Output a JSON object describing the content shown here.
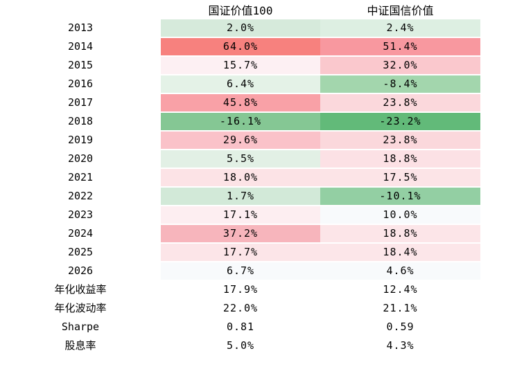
{
  "table": {
    "columns": [
      "国证价值100",
      "中证国信价值"
    ],
    "rows": [
      {
        "label": "2013",
        "v1": "2.0%",
        "c1": "#d6eadb",
        "v2": "2.4%",
        "c2": "#ddefe2"
      },
      {
        "label": "2014",
        "v1": "64.0%",
        "c1": "#f7817e",
        "v2": "51.4%",
        "c2": "#f8989f"
      },
      {
        "label": "2015",
        "v1": "15.7%",
        "c1": "#fdf0f3",
        "v2": "32.0%",
        "c2": "#fac8cd"
      },
      {
        "label": "2016",
        "v1": "6.4%",
        "c1": "#e4f2e7",
        "v2": "-8.4%",
        "c2": "#a3d6ad"
      },
      {
        "label": "2017",
        "v1": "45.8%",
        "c1": "#f9a1a7",
        "v2": "23.8%",
        "c2": "#fbd8dc"
      },
      {
        "label": "2018",
        "v1": "-16.1%",
        "c1": "#85c794",
        "v2": "-23.2%",
        "c2": "#62ba79"
      },
      {
        "label": "2019",
        "v1": "29.6%",
        "c1": "#fac2c9",
        "v2": "23.8%",
        "c2": "#fbd8dc"
      },
      {
        "label": "2020",
        "v1": "5.5%",
        "c1": "#e2f0e5",
        "v2": "18.8%",
        "c2": "#fce1e5"
      },
      {
        "label": "2021",
        "v1": "18.0%",
        "c1": "#fce3e6",
        "v2": "17.5%",
        "c2": "#fce4e7"
      },
      {
        "label": "2022",
        "v1": "1.7%",
        "c1": "#d2e9d8",
        "v2": "-10.1%",
        "c2": "#93cfa3"
      },
      {
        "label": "2023",
        "v1": "17.1%",
        "c1": "#fdeef1",
        "v2": "10.0%",
        "c2": "#f8fafc"
      },
      {
        "label": "2024",
        "v1": "37.2%",
        "c1": "#f7b5bc",
        "v2": "18.8%",
        "c2": "#fce5e8"
      },
      {
        "label": "2025",
        "v1": "17.7%",
        "c1": "#fce5e8",
        "v2": "18.4%",
        "c2": "#fce6e9"
      },
      {
        "label": "2026",
        "v1": "6.7%",
        "c1": "#f8fafc",
        "v2": "4.6%",
        "c2": "#f8fafc"
      },
      {
        "label": "年化收益率",
        "v1": "17.9%",
        "c1": "#ffffff",
        "v2": "12.4%",
        "c2": "#ffffff"
      },
      {
        "label": "年化波动率",
        "v1": "22.0%",
        "c1": "#ffffff",
        "v2": "21.1%",
        "c2": "#ffffff"
      },
      {
        "label": "Sharpe",
        "v1": "0.81",
        "c1": "#ffffff",
        "v2": "0.59",
        "c2": "#ffffff"
      },
      {
        "label": "股息率",
        "v1": "5.0%",
        "c1": "#ffffff",
        "v2": "4.3%",
        "c2": "#ffffff"
      }
    ]
  },
  "colors": {
    "max_positive_red": "#f7817e",
    "max_negative_green": "#62ba79",
    "neutral": "#f8fafc",
    "text": "#000000",
    "background": "#ffffff"
  },
  "chart_data": {
    "type": "heatmap",
    "title": "",
    "columns": [
      "国证价值100",
      "中证国信价值"
    ],
    "row_labels": [
      "2013",
      "2014",
      "2015",
      "2016",
      "2017",
      "2018",
      "2019",
      "2020",
      "2021",
      "2022",
      "2023",
      "2024",
      "2025",
      "2026",
      "年化收益率",
      "年化波动率",
      "Sharpe",
      "股息率"
    ],
    "series": [
      {
        "name": "国证价值100",
        "values": [
          2.0,
          64.0,
          15.7,
          6.4,
          45.8,
          -16.1,
          29.6,
          5.5,
          18.0,
          1.7,
          17.1,
          37.2,
          17.7,
          6.7,
          17.9,
          22.0,
          0.81,
          5.0
        ]
      },
      {
        "name": "中证国信价值",
        "values": [
          2.4,
          51.4,
          32.0,
          -8.4,
          23.8,
          -23.2,
          23.8,
          18.8,
          17.5,
          -10.1,
          10.0,
          18.8,
          18.4,
          4.6,
          12.4,
          21.1,
          0.59,
          4.3
        ]
      }
    ],
    "value_unit": "percent (Sharpe rows are ratios)",
    "legend_position": "none",
    "grid": false,
    "color_scale": "diverging red (high positive) to green (negative), white near ~8%"
  }
}
